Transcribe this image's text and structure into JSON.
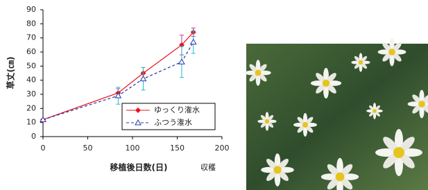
{
  "chart_data": {
    "type": "line",
    "y_label": "草丈(㎝)",
    "x_label": "移植後日数(日)",
    "annotation": "収穫",
    "x": [
      0,
      84,
      112,
      155,
      168
    ],
    "series": [
      {
        "name": "ゆっくり潅水",
        "color": "#e8141e",
        "error_color": "#cc3399",
        "marker": "diamond",
        "dash": false,
        "values": [
          12,
          31,
          45,
          65,
          74
        ],
        "errors": [
          0,
          3,
          4,
          7,
          3
        ]
      },
      {
        "name": "ふつう潅水",
        "color": "#2233aa",
        "error_color": "#22bbcc",
        "marker": "triangle",
        "dash": true,
        "values": [
          12,
          29,
          41,
          53,
          67
        ],
        "errors": [
          0,
          6,
          8,
          11,
          8
        ]
      }
    ],
    "xlim": [
      0,
      200
    ],
    "xticks": [
      0,
      50,
      100,
      150,
      200
    ],
    "ylim": [
      0,
      90
    ],
    "yticks": [
      0,
      10,
      20,
      30,
      40,
      50,
      60,
      70,
      80,
      90
    ],
    "grid": false,
    "legend": "lower right"
  }
}
